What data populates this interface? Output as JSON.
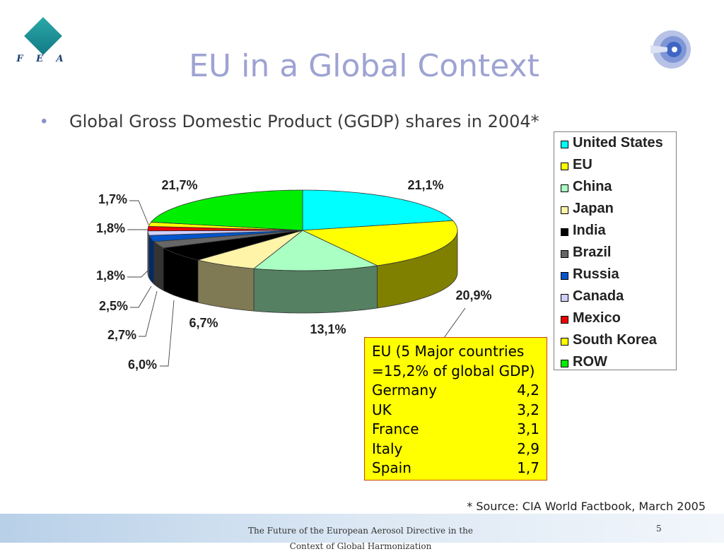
{
  "logo": {
    "text": "F E A"
  },
  "title": "EU in a Global Context",
  "bullet": "Global Gross Domestic Product (GGDP) shares in 2004*",
  "chart_data": {
    "type": "pie",
    "categories": [
      "United States",
      "EU",
      "China",
      "Japan",
      "India",
      "Brazil",
      "Russia",
      "Canada",
      "Mexico",
      "South Korea",
      "ROW"
    ],
    "values": [
      21.1,
      20.9,
      13.1,
      6.7,
      6.0,
      2.7,
      2.5,
      1.8,
      1.8,
      1.7,
      21.7
    ],
    "value_labels": [
      "21,1%",
      "20,9%",
      "13,1%",
      "6,7%",
      "6,0%",
      "2,7%",
      "2,5%",
      "1,8%",
      "1,8%",
      "1,7%",
      "21,7%"
    ],
    "colors": [
      "#00ffff",
      "#ffff00",
      "#aaffc3",
      "#fff4a8",
      "#000000",
      "#666666",
      "#0055cc",
      "#d0d0ff",
      "#ee0000",
      "#ffff00",
      "#00ee00"
    ],
    "legend_position": "right",
    "three_d": true
  },
  "eu_box": {
    "header_line1": "EU (5 Major countries",
    "header_line2": "=15,2% of global GDP)",
    "rows": [
      {
        "country": "Germany",
        "value": "4,2"
      },
      {
        "country": "UK",
        "value": "3,2"
      },
      {
        "country": "France",
        "value": "3,1"
      },
      {
        "country": "Italy",
        "value": "2,9"
      },
      {
        "country": "Spain",
        "value": "1,7"
      }
    ]
  },
  "source": "* Source: CIA World Factbook, March 2005",
  "footer": {
    "line1": "The Future of the European Aerosol Directive in the",
    "line2": "Context of Global Harmonization",
    "page": "5"
  }
}
